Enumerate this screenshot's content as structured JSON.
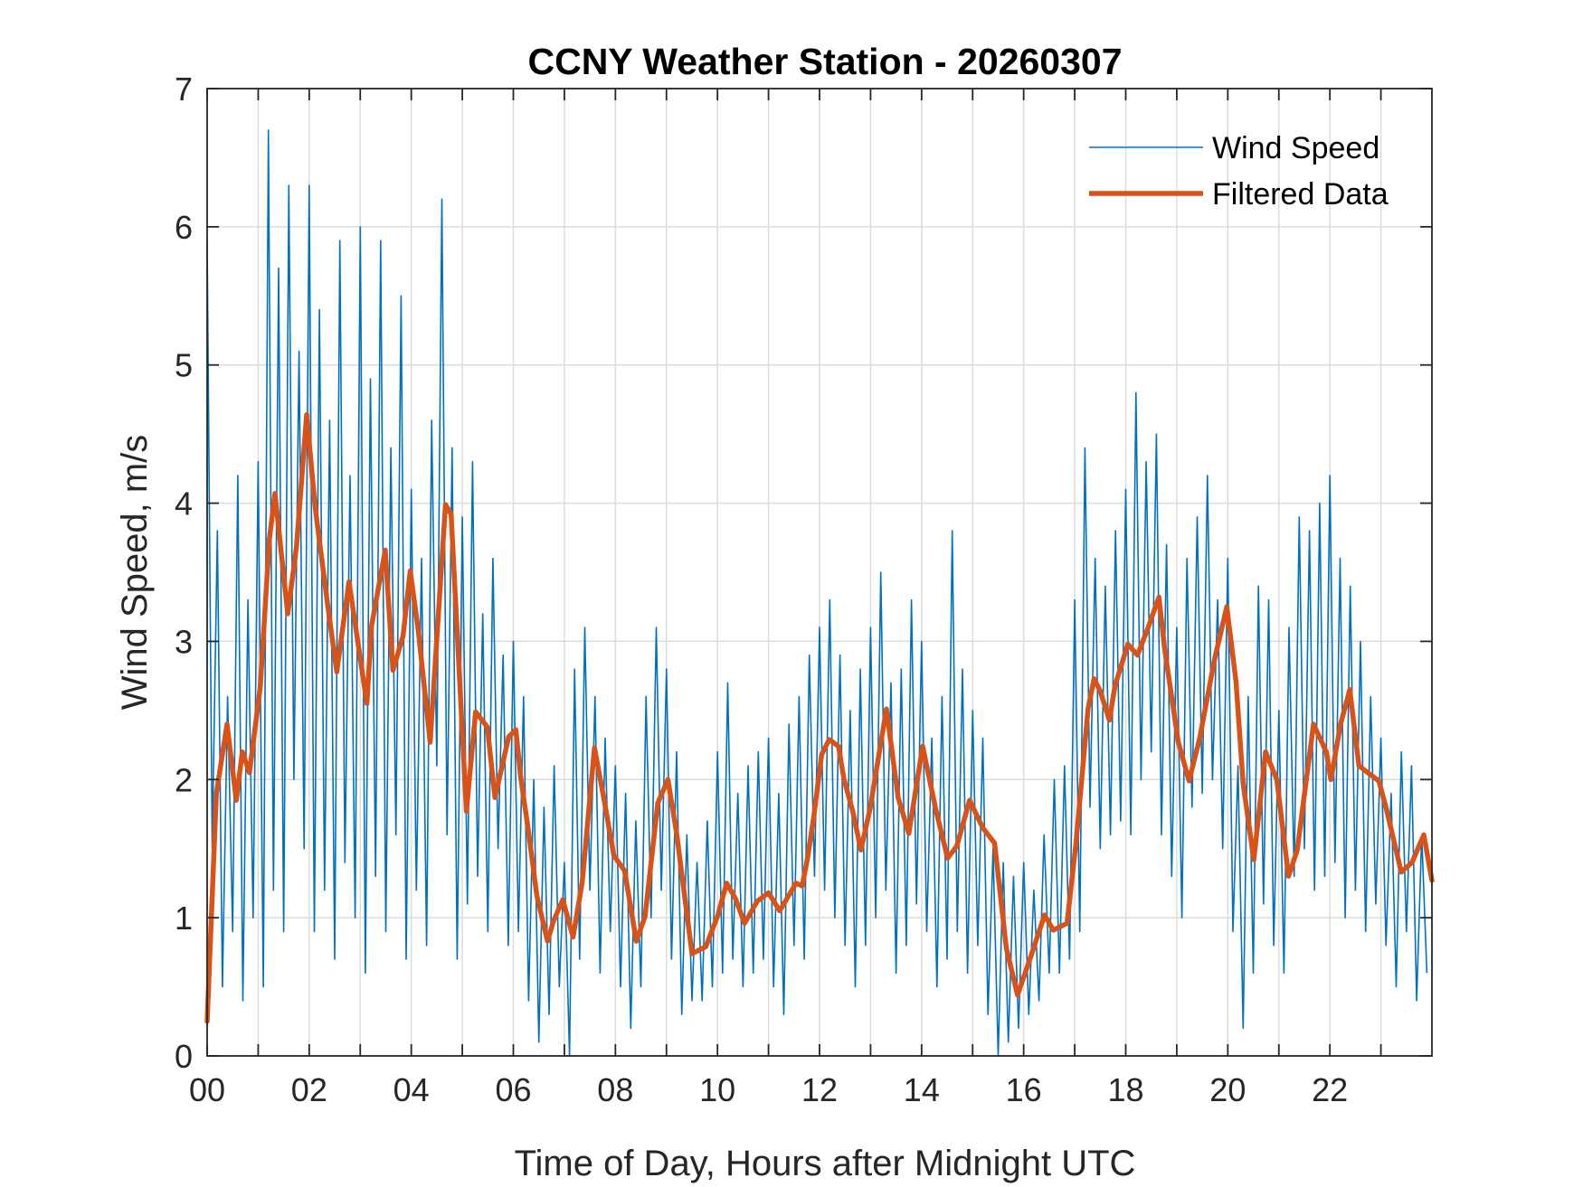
{
  "chart_data": {
    "type": "line",
    "title": "CCNY Weather Station - 20260307",
    "xlabel": "Time of Day, Hours after Midnight UTC",
    "ylabel": "Wind Speed, m/s",
    "xlim": [
      0,
      24
    ],
    "ylim": [
      0,
      7
    ],
    "grid": true,
    "legend_position": "top-right",
    "x_ticks": [
      0,
      2,
      4,
      6,
      8,
      10,
      12,
      14,
      16,
      18,
      20,
      22
    ],
    "x_tick_labels": [
      "00",
      "02",
      "04",
      "06",
      "08",
      "10",
      "12",
      "14",
      "16",
      "18",
      "20",
      "22"
    ],
    "x_minor_ticks": [
      1,
      3,
      5,
      7,
      9,
      11,
      13,
      15,
      17,
      19,
      21,
      23
    ],
    "y_ticks": [
      0,
      1,
      2,
      3,
      4,
      5,
      6,
      7
    ],
    "y_tick_labels": [
      "0",
      "1",
      "2",
      "3",
      "4",
      "5",
      "6",
      "7"
    ],
    "series": [
      {
        "name": "Wind Speed",
        "color": "#0072BD",
        "x_start": 0,
        "x_step": 0.1,
        "values": [
          5.9,
          1.5,
          3.8,
          0.5,
          2.6,
          0.9,
          4.2,
          0.4,
          3.3,
          1.0,
          4.3,
          0.5,
          6.7,
          1.2,
          5.7,
          0.9,
          6.3,
          2.0,
          5.1,
          1.5,
          6.3,
          0.9,
          5.4,
          1.2,
          4.6,
          0.7,
          5.9,
          1.4,
          4.2,
          1.0,
          6.0,
          0.6,
          4.9,
          1.3,
          5.9,
          0.9,
          4.4,
          1.6,
          5.5,
          0.7,
          4.1,
          1.2,
          3.6,
          0.8,
          4.6,
          2.1,
          6.2,
          1.6,
          4.4,
          0.7,
          3.9,
          1.1,
          4.3,
          1.3,
          3.2,
          0.9,
          3.6,
          1.5,
          2.9,
          0.8,
          3.0,
          0.9,
          2.6,
          0.4,
          2.0,
          0.1,
          1.8,
          0.3,
          2.1,
          0.5,
          1.4,
          0.0,
          2.8,
          0.7,
          3.1,
          1.2,
          2.6,
          0.6,
          2.3,
          0.9,
          2.1,
          0.5,
          1.9,
          0.2,
          1.7,
          0.5,
          2.6,
          1.0,
          3.1,
          1.2,
          2.8,
          0.7,
          2.2,
          0.3,
          1.6,
          0.4,
          1.4,
          0.4,
          1.7,
          0.5,
          2.2,
          0.6,
          2.7,
          0.7,
          1.9,
          0.5,
          2.1,
          0.6,
          2.2,
          0.7,
          2.3,
          0.5,
          1.9,
          0.3,
          2.4,
          0.8,
          2.6,
          0.7,
          2.9,
          1.3,
          3.1,
          1.2,
          3.3,
          1.0,
          2.9,
          0.8,
          2.5,
          0.5,
          2.8,
          0.8,
          3.1,
          1.0,
          3.5,
          1.2,
          2.7,
          0.6,
          2.8,
          0.8,
          3.3,
          1.1,
          3.0,
          0.9,
          2.3,
          0.5,
          2.6,
          0.7,
          3.8,
          0.9,
          2.8,
          0.6,
          2.5,
          0.8,
          2.3,
          0.3,
          1.5,
          0.0,
          1.4,
          0.1,
          1.3,
          0.2,
          1.4,
          0.3,
          1.2,
          0.4,
          1.6,
          0.6,
          2.0,
          0.6,
          2.1,
          0.7,
          3.3,
          0.9,
          4.4,
          1.8,
          3.6,
          1.5,
          3.4,
          1.6,
          3.8,
          1.7,
          4.1,
          1.6,
          4.8,
          2.0,
          4.3,
          2.2,
          4.5,
          1.6,
          3.7,
          1.3,
          3.1,
          1.0,
          3.6,
          1.8,
          3.9,
          1.9,
          4.2,
          2.0,
          3.3,
          1.5,
          3.6,
          0.9,
          2.1,
          0.2,
          2.6,
          0.6,
          3.4,
          1.1,
          3.3,
          0.8,
          2.5,
          0.6,
          3.1,
          1.3,
          3.9,
          1.5,
          3.8,
          1.2,
          4.0,
          1.3,
          4.2,
          1.4,
          3.6,
          1.0,
          3.4,
          1.2,
          3.0,
          0.9,
          2.6,
          1.1,
          2.3,
          0.8,
          1.9,
          0.5,
          2.2,
          0.9,
          2.1,
          0.4,
          1.6,
          0.6
        ]
      },
      {
        "name": "Filtered Data",
        "color": "#D95319",
        "points": [
          [
            0,
            0.25
          ],
          [
            0.18,
            1.9
          ],
          [
            0.39,
            2.4
          ],
          [
            0.57,
            1.85
          ],
          [
            0.69,
            2.2
          ],
          [
            0.83,
            2.05
          ],
          [
            1.04,
            2.67
          ],
          [
            1.22,
            3.74
          ],
          [
            1.33,
            4.07
          ],
          [
            1.58,
            3.2
          ],
          [
            1.75,
            3.68
          ],
          [
            1.95,
            4.64
          ],
          [
            2.12,
            3.96
          ],
          [
            2.36,
            3.27
          ],
          [
            2.54,
            2.78
          ],
          [
            2.78,
            3.43
          ],
          [
            3.13,
            2.55
          ],
          [
            3.22,
            3.11
          ],
          [
            3.49,
            3.66
          ],
          [
            3.64,
            2.79
          ],
          [
            3.84,
            3.04
          ],
          [
            3.98,
            3.51
          ],
          [
            4.14,
            3.07
          ],
          [
            4.37,
            2.27
          ],
          [
            4.67,
            3.99
          ],
          [
            4.78,
            3.92
          ],
          [
            5.08,
            1.77
          ],
          [
            5.26,
            2.49
          ],
          [
            5.49,
            2.38
          ],
          [
            5.64,
            1.87
          ],
          [
            5.91,
            2.31
          ],
          [
            6.05,
            2.36
          ],
          [
            6.14,
            2.03
          ],
          [
            6.29,
            1.64
          ],
          [
            6.46,
            1.16
          ],
          [
            6.67,
            0.83
          ],
          [
            6.79,
            0.98
          ],
          [
            6.97,
            1.13
          ],
          [
            7.17,
            0.86
          ],
          [
            7.35,
            1.26
          ],
          [
            7.59,
            2.23
          ],
          [
            7.77,
            1.87
          ],
          [
            7.97,
            1.45
          ],
          [
            8.18,
            1.34
          ],
          [
            8.41,
            0.83
          ],
          [
            8.58,
            1.01
          ],
          [
            8.83,
            1.83
          ],
          [
            9.03,
            2.0
          ],
          [
            9.2,
            1.61
          ],
          [
            9.5,
            0.74
          ],
          [
            9.77,
            0.79
          ],
          [
            10.0,
            1.01
          ],
          [
            10.18,
            1.25
          ],
          [
            10.35,
            1.14
          ],
          [
            10.53,
            0.96
          ],
          [
            10.78,
            1.12
          ],
          [
            11.0,
            1.18
          ],
          [
            11.22,
            1.05
          ],
          [
            11.54,
            1.25
          ],
          [
            11.66,
            1.23
          ],
          [
            11.77,
            1.44
          ],
          [
            11.89,
            1.74
          ],
          [
            12.04,
            2.18
          ],
          [
            12.19,
            2.29
          ],
          [
            12.37,
            2.24
          ],
          [
            12.48,
            2.0
          ],
          [
            12.65,
            1.77
          ],
          [
            12.81,
            1.49
          ],
          [
            12.99,
            1.79
          ],
          [
            13.31,
            2.51
          ],
          [
            13.54,
            1.87
          ],
          [
            13.75,
            1.61
          ],
          [
            14.02,
            2.24
          ],
          [
            14.28,
            1.78
          ],
          [
            14.51,
            1.43
          ],
          [
            14.69,
            1.52
          ],
          [
            14.94,
            1.85
          ],
          [
            15.2,
            1.65
          ],
          [
            15.43,
            1.54
          ],
          [
            15.66,
            0.78
          ],
          [
            15.88,
            0.44
          ],
          [
            16.14,
            0.72
          ],
          [
            16.41,
            1.02
          ],
          [
            16.58,
            0.91
          ],
          [
            16.85,
            0.96
          ],
          [
            17.03,
            1.56
          ],
          [
            17.26,
            2.51
          ],
          [
            17.38,
            2.73
          ],
          [
            17.5,
            2.64
          ],
          [
            17.68,
            2.43
          ],
          [
            17.79,
            2.68
          ],
          [
            18.04,
            2.98
          ],
          [
            18.23,
            2.9
          ],
          [
            18.44,
            3.1
          ],
          [
            18.65,
            3.32
          ],
          [
            18.76,
            2.95
          ],
          [
            19.03,
            2.27
          ],
          [
            19.24,
            1.99
          ],
          [
            19.45,
            2.3
          ],
          [
            19.74,
            2.87
          ],
          [
            19.98,
            3.25
          ],
          [
            20.16,
            2.71
          ],
          [
            20.3,
            1.97
          ],
          [
            20.51,
            1.42
          ],
          [
            20.74,
            2.2
          ],
          [
            20.96,
            2.0
          ],
          [
            21.19,
            1.3
          ],
          [
            21.36,
            1.49
          ],
          [
            21.68,
            2.4
          ],
          [
            21.93,
            2.2
          ],
          [
            22.02,
            2.0
          ],
          [
            22.21,
            2.4
          ],
          [
            22.39,
            2.65
          ],
          [
            22.57,
            2.1
          ],
          [
            22.74,
            2.05
          ],
          [
            22.96,
            1.99
          ],
          [
            23.1,
            1.8
          ],
          [
            23.4,
            1.33
          ],
          [
            23.61,
            1.4
          ],
          [
            23.84,
            1.6
          ],
          [
            24.0,
            1.27
          ]
        ]
      }
    ],
    "legend": [
      {
        "label": "Wind Speed",
        "color": "#0072BD",
        "style": "thin"
      },
      {
        "label": "Filtered Data",
        "color": "#D95319",
        "style": "thick"
      }
    ]
  }
}
